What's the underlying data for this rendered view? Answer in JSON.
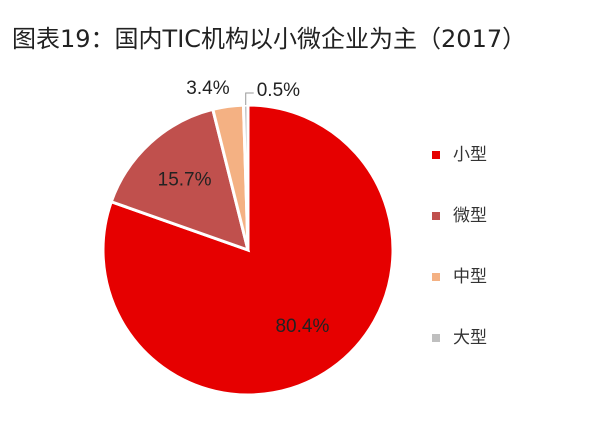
{
  "chart_data": {
    "type": "pie",
    "title": "图表19：国内TIC机构以小微企业为主（2017）",
    "categories": [
      "小型",
      "微型",
      "中型",
      "大型"
    ],
    "values": [
      80.4,
      15.7,
      3.4,
      0.5
    ],
    "value_labels": [
      "80.4%",
      "15.7%",
      "3.4%",
      "0.5%"
    ],
    "colors": [
      "#e60000",
      "#c0504d",
      "#f4b183",
      "#bfbfbf"
    ],
    "legend": "right"
  }
}
